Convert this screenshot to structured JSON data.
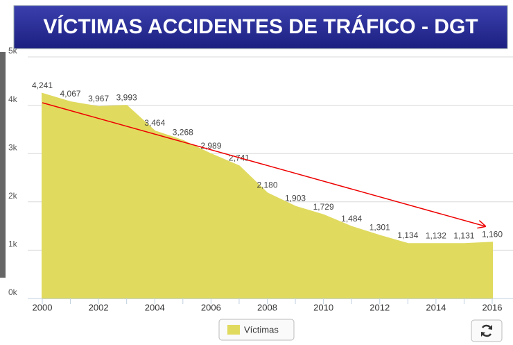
{
  "chart_data": {
    "type": "area",
    "title": "VÍCTIMAS ACCIDENTES  DE TRÁFICO - DGT",
    "x": [
      2000,
      2001,
      2002,
      2003,
      2004,
      2005,
      2006,
      2007,
      2008,
      2009,
      2010,
      2011,
      2012,
      2013,
      2014,
      2015,
      2016
    ],
    "xlim": [
      2000,
      2016
    ],
    "xticks": [
      2000,
      2002,
      2004,
      2006,
      2008,
      2010,
      2012,
      2014,
      2016
    ],
    "ylim": [
      0,
      5000
    ],
    "yticks": [
      {
        "value": 0,
        "label": "0k"
      },
      {
        "value": 1000,
        "label": "1k"
      },
      {
        "value": 2000,
        "label": "2k"
      },
      {
        "value": 3000,
        "label": "3k"
      },
      {
        "value": 4000,
        "label": "4k"
      },
      {
        "value": 5000,
        "label": "5k"
      }
    ],
    "grid": true,
    "series": [
      {
        "name": "Víctimas",
        "color": "#e0da5f",
        "values": [
          4241,
          4067,
          3967,
          3993,
          3464,
          3268,
          2989,
          2741,
          2180,
          1903,
          1729,
          1484,
          1301,
          1134,
          1132,
          1131,
          1160
        ],
        "value_labels": [
          "4,241",
          "4,067",
          "3,967",
          "3,993",
          "3,464",
          "3,268",
          "2,989",
          "2,741",
          "2,180",
          "1,903",
          "1,729",
          "1,484",
          "1,301",
          "1,134",
          "1,132",
          "1,131",
          "1,160"
        ]
      }
    ]
  }
}
